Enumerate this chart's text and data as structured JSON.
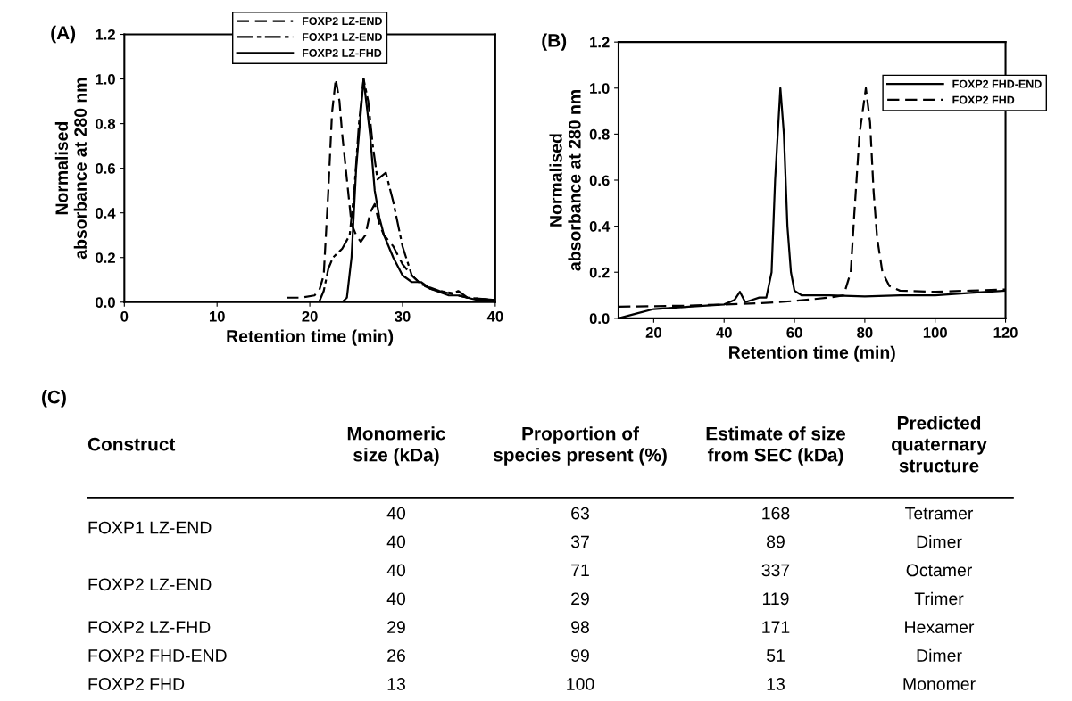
{
  "chart_data": [
    {
      "type": "line",
      "title": "(A)",
      "xlabel": "Retention time (min)",
      "ylabel": "Normalised\nabsorbance at 280 nm",
      "xlim": [
        0,
        40
      ],
      "ylim": [
        0,
        1.2
      ],
      "xticks": [
        0,
        10,
        20,
        30,
        40
      ],
      "yticks": [
        {
          "value": 0,
          "label": "0.0"
        },
        {
          "value": 0.2,
          "label": "0.2"
        },
        {
          "value": 0.4,
          "label": "0.4"
        },
        {
          "value": 0.6,
          "label": "0.6"
        },
        {
          "value": 0.8,
          "label": "0.8"
        },
        {
          "value": 1.0,
          "label": "1.0"
        },
        {
          "value": 1.2,
          "label": "1.2"
        }
      ],
      "legend": "top",
      "grid": false,
      "series": [
        {
          "name": "FOXP2 LZ-END",
          "color": "#000000",
          "line_style": "dashed",
          "x": [
            17.5,
            19,
            20.5,
            21,
            21.5,
            22,
            22.4,
            22.8,
            23.2,
            23.5,
            24,
            24.5,
            25,
            25.5,
            26,
            26.5,
            27,
            27.5,
            28,
            29,
            30,
            31,
            32,
            33,
            35,
            37,
            40
          ],
          "values": [
            0.02,
            0.02,
            0.03,
            0.05,
            0.12,
            0.5,
            0.85,
            1.0,
            0.9,
            0.75,
            0.55,
            0.35,
            0.3,
            0.27,
            0.3,
            0.4,
            0.44,
            0.35,
            0.3,
            0.25,
            0.17,
            0.12,
            0.08,
            0.06,
            0.04,
            0.02,
            0.01
          ]
        },
        {
          "name": "FOXP1 LZ-END",
          "color": "#000000",
          "line_style": "dashdot",
          "x": [
            21,
            21.5,
            22,
            22.5,
            23.5,
            24.3,
            24.8,
            25.3,
            25.8,
            26.3,
            26.8,
            27.3,
            28.2,
            29,
            30,
            31,
            32,
            34,
            35.5,
            36,
            37,
            40
          ],
          "values": [
            0.0,
            0.05,
            0.15,
            0.2,
            0.24,
            0.3,
            0.5,
            0.8,
            1.0,
            0.9,
            0.7,
            0.55,
            0.58,
            0.45,
            0.25,
            0.12,
            0.08,
            0.05,
            0.04,
            0.05,
            0.02,
            0.01
          ]
        },
        {
          "name": "FOXP2 LZ-FHD",
          "color": "#000000",
          "line_style": "solid",
          "x": [
            5,
            23.5,
            24,
            24.5,
            25,
            25.8,
            26.5,
            27,
            27.5,
            28,
            29,
            30,
            31,
            32,
            33,
            35,
            36,
            38,
            40
          ],
          "values": [
            0.0,
            0.0,
            0.02,
            0.2,
            0.6,
            1.0,
            0.75,
            0.5,
            0.38,
            0.3,
            0.2,
            0.12,
            0.09,
            0.09,
            0.06,
            0.03,
            0.03,
            0.01,
            0.01
          ]
        }
      ]
    },
    {
      "type": "line",
      "title": "(B)",
      "xlabel": "Retention time (min)",
      "ylabel": "Normalised\nabsorbance at 280 nm",
      "xlim": [
        10,
        120
      ],
      "ylim": [
        0,
        1.2
      ],
      "xticks": [
        20,
        40,
        60,
        80,
        100,
        120
      ],
      "yticks": [
        {
          "value": 0,
          "label": "0.0"
        },
        {
          "value": 0.2,
          "label": "0.2"
        },
        {
          "value": 0.4,
          "label": "0.4"
        },
        {
          "value": 0.6,
          "label": "0.6"
        },
        {
          "value": 0.8,
          "label": "0.8"
        },
        {
          "value": 1.0,
          "label": "1.0"
        },
        {
          "value": 1.2,
          "label": "1.2"
        }
      ],
      "legend": "top right",
      "grid": false,
      "series": [
        {
          "name": "FOXP2 FHD-END",
          "color": "#000000",
          "line_style": "solid",
          "x": [
            10,
            15,
            20,
            30,
            40,
            43,
            44.5,
            46,
            48,
            50,
            52,
            53.5,
            54.5,
            56,
            57,
            58,
            59,
            60,
            62,
            70,
            80,
            90,
            100,
            110,
            120
          ],
          "values": [
            0.0,
            0.02,
            0.04,
            0.05,
            0.06,
            0.08,
            0.115,
            0.07,
            0.08,
            0.09,
            0.09,
            0.2,
            0.6,
            1.0,
            0.8,
            0.4,
            0.2,
            0.12,
            0.1,
            0.1,
            0.095,
            0.1,
            0.1,
            0.11,
            0.12
          ]
        },
        {
          "name": "FOXP2 FHD",
          "color": "#000000",
          "line_style": "dashed",
          "x": [
            10,
            30,
            40,
            50,
            60,
            70,
            74,
            76,
            77,
            78.5,
            80.3,
            81.5,
            82.5,
            83.5,
            85,
            87,
            90,
            100,
            110,
            120
          ],
          "values": [
            0.05,
            0.055,
            0.06,
            0.065,
            0.075,
            0.09,
            0.1,
            0.2,
            0.45,
            0.8,
            1.0,
            0.85,
            0.55,
            0.35,
            0.2,
            0.14,
            0.12,
            0.115,
            0.12,
            0.125
          ]
        }
      ]
    },
    {
      "type": "other",
      "title": "(C)",
      "categories": [
        "Construct",
        "Monomeric\nsize (kDa)",
        "Proportion of\nspecies present (%)",
        "Estimate of size\nfrom SEC (kDa)",
        "Predicted\nquaternary\nstructure"
      ],
      "cell_labels": [
        [
          "FOXP1 LZ-END",
          "40",
          "63",
          "168",
          "Tetramer"
        ],
        [
          null,
          "40",
          "37",
          "89",
          "Dimer"
        ],
        [
          "FOXP2 LZ-END",
          "40",
          "71",
          "337",
          "Octamer"
        ],
        [
          null,
          "40",
          "29",
          "119",
          "Trimer"
        ],
        [
          "FOXP2 LZ-FHD",
          "29",
          "98",
          "171",
          "Hexamer"
        ],
        [
          "FOXP2 FHD-END",
          "26",
          "99",
          "51",
          "Dimer"
        ],
        [
          "FOXP2 FHD",
          "13",
          "100",
          "13",
          "Monomer"
        ]
      ]
    }
  ]
}
